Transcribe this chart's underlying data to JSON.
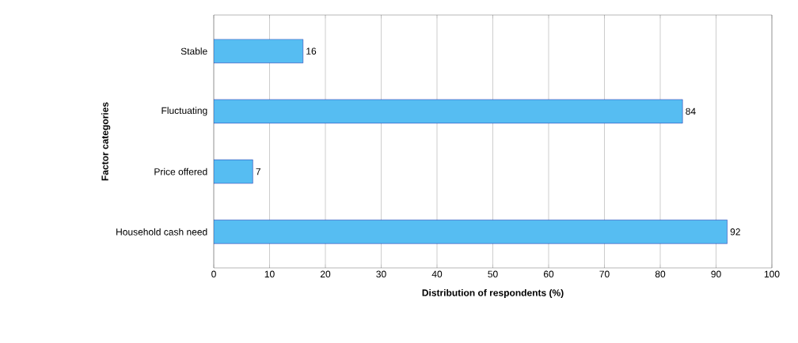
{
  "chart_data": {
    "type": "bar",
    "orientation": "horizontal",
    "xlabel": "Distribution of respondents (%)",
    "ylabel": "Factor categories",
    "categories": [
      "Stable",
      "Fluctuating",
      "Price offered",
      "Household cash need"
    ],
    "values": [
      16,
      84,
      7,
      92
    ],
    "color": "#56bdf2",
    "xlim": [
      0,
      100
    ],
    "xticks": [
      0,
      10,
      20,
      30,
      40,
      50,
      60,
      70,
      80,
      90,
      100
    ],
    "grid": "x",
    "data_labels": true
  }
}
